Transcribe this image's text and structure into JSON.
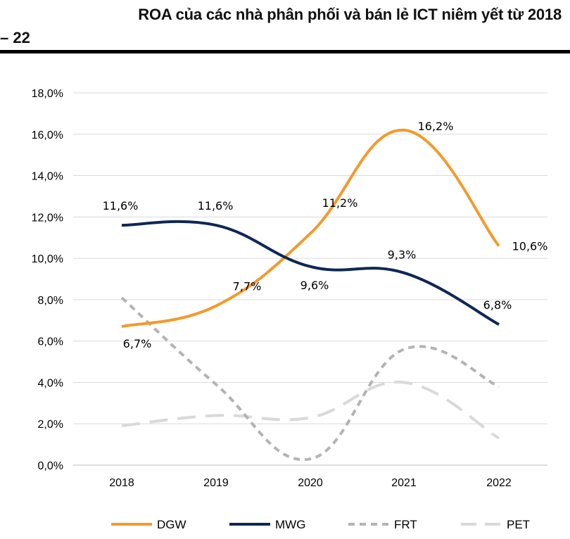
{
  "header": {
    "title_line1": "ROA của các nhà phân phối và bán lẻ ICT niêm yết từ 2018",
    "title_line2": "– 22"
  },
  "chart_data": {
    "type": "line",
    "title": "ROA của các nhà phân phối và bán lẻ ICT niêm yết từ 2018 – 22",
    "xlabel": "",
    "ylabel": "",
    "categories": [
      "2018",
      "2019",
      "2020",
      "2021",
      "2022"
    ],
    "ylim": [
      0,
      18
    ],
    "yticks": [
      "0,0%",
      "2,0%",
      "4,0%",
      "6,0%",
      "8,0%",
      "10,0%",
      "12,0%",
      "14,0%",
      "16,0%",
      "18,0%"
    ],
    "grid": true,
    "legend_position": "bottom",
    "series": [
      {
        "name": "DGW",
        "color": "#F39A2B",
        "dash": "solid",
        "values": [
          6.7,
          7.7,
          11.2,
          16.2,
          10.6
        ],
        "labels": [
          "6,7%",
          "7,7%",
          "11,2%",
          "16,2%",
          "10,6%"
        ]
      },
      {
        "name": "MWG",
        "color": "#0E2756",
        "dash": "solid",
        "values": [
          11.6,
          11.6,
          9.6,
          9.3,
          6.8
        ],
        "labels": [
          "11,6%",
          "11,6%",
          "9,6%",
          "9,3%",
          "6,8%"
        ]
      },
      {
        "name": "FRT",
        "color": "#B3B3B3",
        "dash": "short",
        "values": [
          8.1,
          3.9,
          0.3,
          5.6,
          3.8
        ],
        "labels": []
      },
      {
        "name": "PET",
        "color": "#D9D9D9",
        "dash": "long",
        "values": [
          1.9,
          2.4,
          2.3,
          4.0,
          1.3
        ],
        "labels": []
      }
    ]
  }
}
